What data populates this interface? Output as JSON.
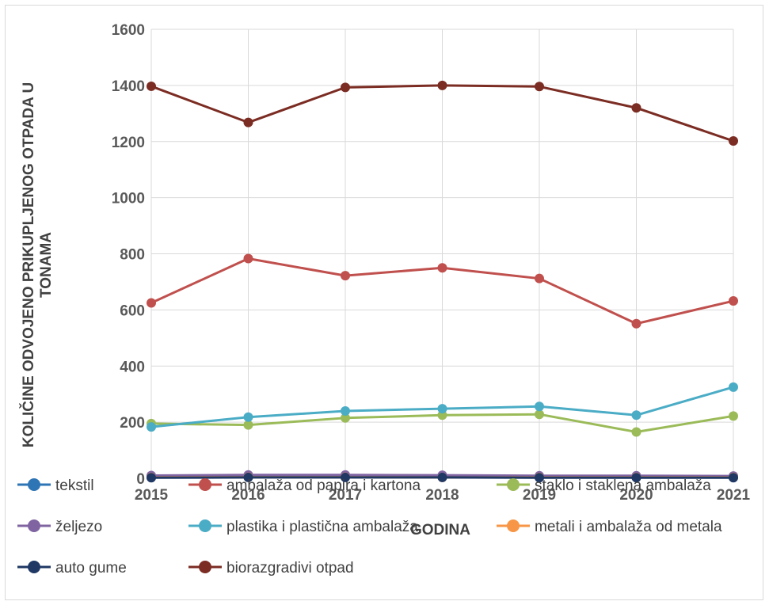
{
  "chart_data": {
    "type": "line",
    "title": "",
    "xlabel": "GODINA",
    "ylabel": [
      "KOLIČINE ODVOJENO PRIKUPLJENOG OTPADA U",
      "TONAMA"
    ],
    "categories": [
      "2015",
      "2016",
      "2017",
      "2018",
      "2019",
      "2020",
      "2021"
    ],
    "ylim": [
      0,
      1600
    ],
    "yticks": [
      0,
      200,
      400,
      600,
      800,
      1000,
      1200,
      1400,
      1600
    ],
    "grid": true,
    "legend_position": "bottom",
    "series": [
      {
        "name": "tekstil",
        "color": "#2e75b6",
        "values": [
          5,
          6,
          7,
          6,
          5,
          5,
          5
        ]
      },
      {
        "name": "ambalaža od papira i kartona",
        "color": "#c0504d",
        "values": [
          625,
          783,
          722,
          750,
          712,
          551,
          632
        ]
      },
      {
        "name": "staklo  i staklena ambalaža",
        "color": "#9bbb59",
        "values": [
          195,
          190,
          215,
          225,
          228,
          165,
          222
        ]
      },
      {
        "name": "željezo",
        "color": "#8064a2",
        "values": [
          10,
          12,
          12,
          11,
          9,
          9,
          8
        ]
      },
      {
        "name": "plastika i plastična ambalaža",
        "color": "#4bacc6",
        "values": [
          183,
          218,
          240,
          248,
          256,
          225,
          325
        ]
      },
      {
        "name": "metali  i ambalaža od metala",
        "color": "#f79646",
        "values": [
          3,
          4,
          4,
          3,
          3,
          3,
          3
        ]
      },
      {
        "name": "auto gume",
        "color": "#1f3864",
        "values": [
          2,
          3,
          3,
          3,
          2,
          2,
          2
        ]
      },
      {
        "name": "biorazgradivi otpad",
        "color": "#7b2c23",
        "values": [
          1397,
          1268,
          1393,
          1400,
          1396,
          1320,
          1202
        ]
      }
    ]
  }
}
